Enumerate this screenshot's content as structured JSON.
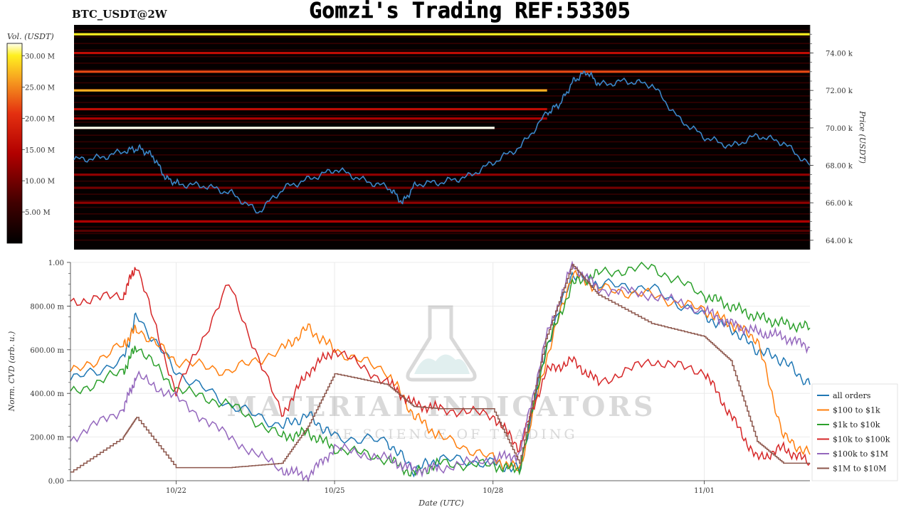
{
  "header": {
    "symbol": "BTC_USDT@2W",
    "title": "Gomzi's Trading REF:53305"
  },
  "watermark": {
    "text": "MATERIAL INDICATORS",
    "subtext": "THE SCIENCE OF TRADING"
  },
  "colors": {
    "heatmap_low": "#000000",
    "heatmap_mid": "#d01010",
    "heatmap_high": "#ffffff",
    "price_line": "#3a86c8",
    "grid": "#e6e6e6"
  },
  "chart_data": [
    {
      "type": "heatmap",
      "x_type": "date",
      "x_range": [
        "2024-10-20",
        "2024-11-03"
      ],
      "ylabel": "Price (USDT)",
      "ylim": [
        63500,
        75500
      ],
      "y_ticks": [
        64000,
        66000,
        68000,
        70000,
        72000,
        74000
      ],
      "y_tick_labels": [
        "64.00 k",
        "66.00 k",
        "68.00 k",
        "70.00 k",
        "72.00 k",
        "74.00 k"
      ],
      "colorbar": {
        "label": "Vol. (USDT)",
        "range": [
          0,
          32000000
        ],
        "ticks": [
          5000000,
          10000000,
          15000000,
          20000000,
          25000000,
          30000000
        ],
        "tick_labels": [
          "5.00 M",
          "10.00 M",
          "15.00 M",
          "20.00 M",
          "25.00 M",
          "30.00 M"
        ]
      },
      "liquidity_levels": [
        {
          "price": 75000,
          "start": "2024-10-20",
          "end": "2024-11-03",
          "volume": 30000000
        },
        {
          "price": 74000,
          "start": "2024-10-20",
          "end": "2024-11-03",
          "volume": 16000000
        },
        {
          "price": 73000,
          "start": "2024-10-20",
          "end": "2024-11-03",
          "volume": 22000000
        },
        {
          "price": 72000,
          "start": "2024-10-20",
          "end": "2024-10-29",
          "volume": 27000000
        },
        {
          "price": 71000,
          "start": "2024-10-20",
          "end": "2024-10-29",
          "volume": 16000000
        },
        {
          "price": 70500,
          "start": "2024-10-20",
          "end": "2024-10-29",
          "volume": 14000000
        },
        {
          "price": 70000,
          "start": "2024-10-20",
          "end": "2024-10-28",
          "volume": 33000000
        },
        {
          "price": 67500,
          "start": "2024-10-20",
          "end": "2024-11-03",
          "volume": 12000000
        },
        {
          "price": 66800,
          "start": "2024-10-20",
          "end": "2024-11-03",
          "volume": 10000000
        },
        {
          "price": 66000,
          "start": "2024-10-20",
          "end": "2024-11-03",
          "volume": 12000000
        },
        {
          "price": 65000,
          "start": "2024-10-20",
          "end": "2024-11-03",
          "volume": 14000000
        },
        {
          "price": 64500,
          "start": "2024-10-20",
          "end": "2024-11-03",
          "volume": 8000000
        }
      ],
      "price_series": {
        "x": [
          "2024-10-20T00:00",
          "2024-10-20T12:00",
          "2024-10-21T00:00",
          "2024-10-21T06:00",
          "2024-10-21T12:00",
          "2024-10-21T18:00",
          "2024-10-22T00:00",
          "2024-10-22T12:00",
          "2024-10-23T00:00",
          "2024-10-23T12:00",
          "2024-10-24T00:00",
          "2024-10-24T12:00",
          "2024-10-25T00:00",
          "2024-10-25T12:00",
          "2024-10-26T00:00",
          "2024-10-26T06:00",
          "2024-10-26T12:00",
          "2024-10-27T00:00",
          "2024-10-27T12:00",
          "2024-10-28T00:00",
          "2024-10-28T12:00",
          "2024-10-29T00:00",
          "2024-10-29T06:00",
          "2024-10-29T12:00",
          "2024-10-29T18:00",
          "2024-10-30T00:00",
          "2024-10-30T12:00",
          "2024-10-31T00:00",
          "2024-10-31T12:00",
          "2024-11-01T00:00",
          "2024-11-01T12:00",
          "2024-11-02T00:00",
          "2024-11-02T12:00",
          "2024-11-03T00:00"
        ],
        "y": [
          68300,
          68400,
          68800,
          68900,
          68500,
          67300,
          67000,
          66900,
          66500,
          65500,
          66800,
          67300,
          67800,
          67200,
          66800,
          66000,
          67000,
          67100,
          67400,
          68200,
          69000,
          70800,
          71300,
          72500,
          73000,
          72300,
          72500,
          72300,
          70500,
          69500,
          69000,
          69600,
          69200,
          68000
        ]
      }
    },
    {
      "type": "line",
      "x_type": "date",
      "x_range": [
        "2024-10-20",
        "2024-11-03"
      ],
      "xlabel": "Date (UTC)",
      "ylabel": "Norm. CVD (arb. u.)",
      "ylim": [
        0,
        1
      ],
      "x_ticks": [
        "2024-10-22",
        "2024-10-25",
        "2024-10-28",
        "2024-11-01"
      ],
      "x_tick_labels": [
        "10/22",
        "10/25",
        "10/28",
        "11/01"
      ],
      "y_ticks": [
        0,
        0.2,
        0.4,
        0.6,
        0.8,
        1.0
      ],
      "y_tick_labels": [
        "0.00",
        "200.00 m",
        "400.00 m",
        "600.00 m",
        "800.00 m",
        "1.00"
      ],
      "grid": true,
      "legend_position": "bottom-right",
      "x": [
        "2024-10-20T00:00",
        "2024-10-21T00:00",
        "2024-10-21T06:00",
        "2024-10-22T00:00",
        "2024-10-23T00:00",
        "2024-10-24T00:00",
        "2024-10-24T12:00",
        "2024-10-25T00:00",
        "2024-10-26T00:00",
        "2024-10-26T12:00",
        "2024-10-27T00:00",
        "2024-10-28T00:00",
        "2024-10-28T12:00",
        "2024-10-29T00:00",
        "2024-10-29T12:00",
        "2024-10-30T00:00",
        "2024-10-31T00:00",
        "2024-11-01T00:00",
        "2024-11-01T12:00",
        "2024-11-02T00:00",
        "2024-11-02T12:00",
        "2024-11-03T00:00"
      ],
      "series": [
        {
          "name": "all orders",
          "color": "#1f77b4",
          "values": [
            0.46,
            0.55,
            0.76,
            0.5,
            0.35,
            0.25,
            0.3,
            0.2,
            0.18,
            0.05,
            0.1,
            0.08,
            0.05,
            0.6,
            0.95,
            0.9,
            0.88,
            0.75,
            0.7,
            0.6,
            0.55,
            0.44
          ]
        },
        {
          "name": "$100 to $1k",
          "color": "#ff7f0e",
          "values": [
            0.49,
            0.62,
            0.7,
            0.55,
            0.5,
            0.6,
            0.7,
            0.6,
            0.5,
            0.3,
            0.2,
            0.1,
            0.05,
            0.55,
            0.95,
            0.88,
            0.85,
            0.78,
            0.72,
            0.65,
            0.2,
            0.12
          ]
        },
        {
          "name": "$1k to $10k",
          "color": "#2ca02c",
          "values": [
            0.4,
            0.5,
            0.62,
            0.42,
            0.35,
            0.2,
            0.22,
            0.15,
            0.1,
            0.03,
            0.08,
            0.07,
            0.05,
            0.6,
            0.9,
            0.95,
            0.98,
            0.85,
            0.8,
            0.75,
            0.72,
            0.7
          ]
        },
        {
          "name": "$10k to $100k",
          "color": "#d62728",
          "values": [
            0.82,
            0.85,
            0.99,
            0.4,
            0.9,
            0.3,
            0.5,
            0.6,
            0.45,
            0.35,
            0.33,
            0.3,
            0.15,
            0.5,
            0.55,
            0.45,
            0.55,
            0.5,
            0.3,
            0.1,
            0.15,
            0.08
          ]
        },
        {
          "name": "$100k to $1M",
          "color": "#9467bd",
          "values": [
            0.19,
            0.33,
            0.48,
            0.38,
            0.2,
            0.05,
            0.02,
            0.15,
            0.1,
            0.05,
            0.06,
            0.1,
            0.12,
            0.65,
            0.99,
            0.88,
            0.85,
            0.78,
            0.72,
            0.68,
            0.66,
            0.61
          ]
        },
        {
          "name": "$1M to $10M",
          "color": "#8c564b",
          "values": [
            0.04,
            0.2,
            0.29,
            0.06,
            0.06,
            0.08,
            0.25,
            0.49,
            0.44,
            0.34,
            0.33,
            0.33,
            0.08,
            0.65,
            0.99,
            0.85,
            0.72,
            0.66,
            0.55,
            0.18,
            0.08,
            0.08
          ]
        }
      ]
    }
  ]
}
